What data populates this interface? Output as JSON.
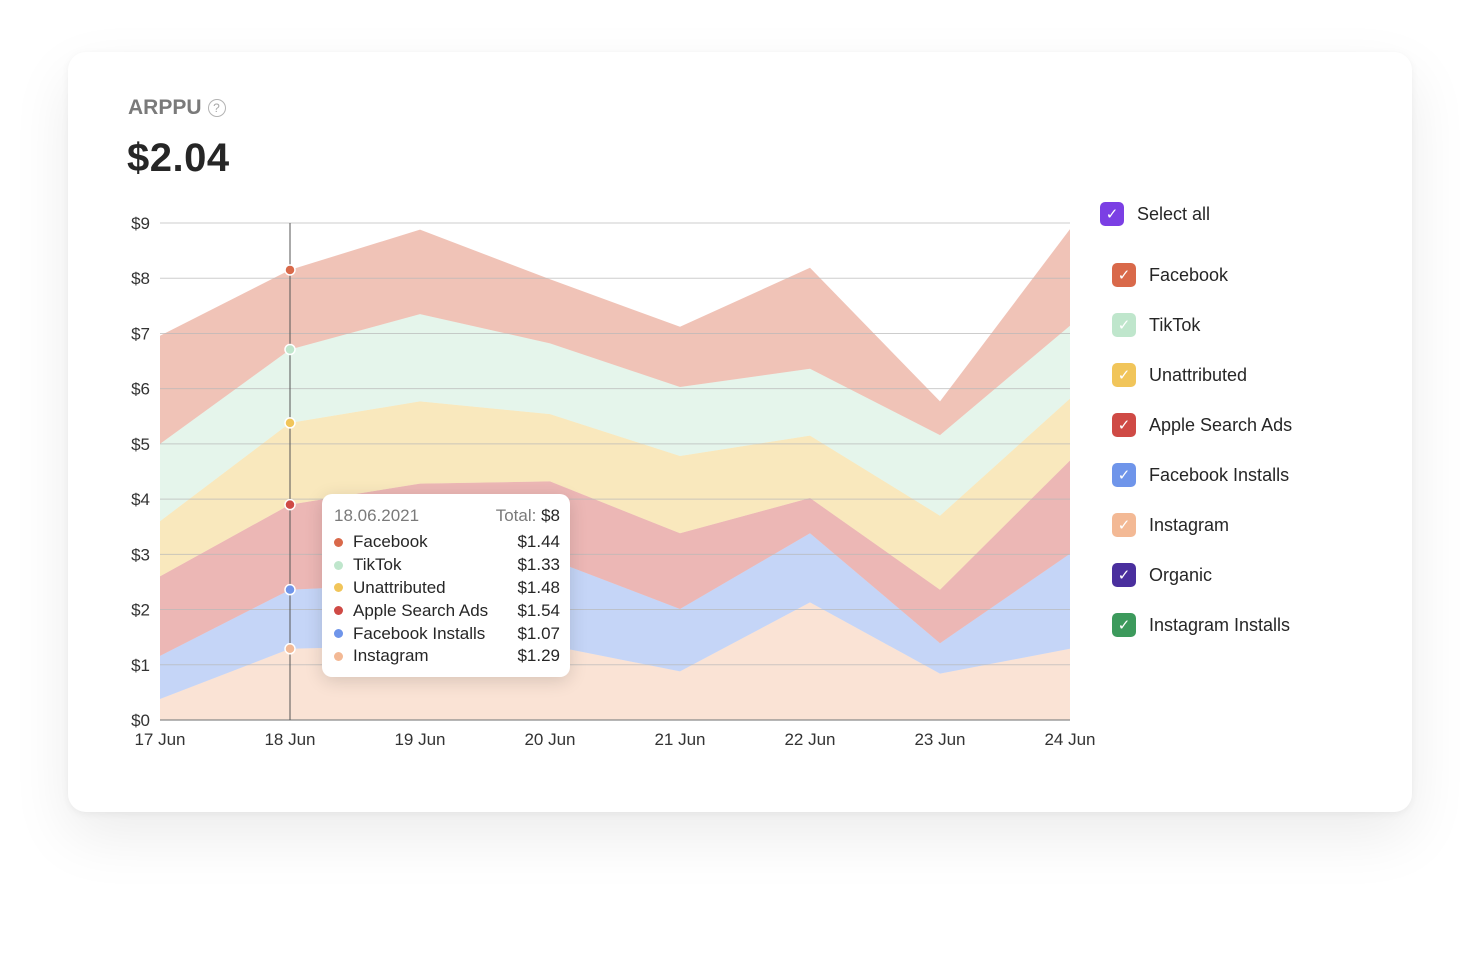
{
  "metric": {
    "title": "ARPPU",
    "help_icon": "question-circle-icon",
    "value": "$2.04"
  },
  "legend": {
    "select_all": {
      "label": "Select all",
      "color": "#7b3fe4",
      "checked": true
    },
    "items": [
      {
        "label": "Facebook",
        "color": "#d9694a",
        "checked": true
      },
      {
        "label": "TikTok",
        "color": "#bfe6cc",
        "checked": true
      },
      {
        "label": "Unattributed",
        "color": "#f1c55a",
        "checked": true
      },
      {
        "label": "Apple Search Ads",
        "color": "#cf4a45",
        "checked": true
      },
      {
        "label": "Facebook Installs",
        "color": "#6f95ea",
        "checked": true
      },
      {
        "label": "Instagram",
        "color": "#f3b995",
        "checked": true
      },
      {
        "label": "Organic",
        "color": "#4a2f9e",
        "checked": true
      },
      {
        "label": "Instagram Installs",
        "color": "#3c9a5c",
        "checked": true
      }
    ]
  },
  "tooltip": {
    "date": "18.06.2021",
    "total_label": "Total:",
    "total_value": "$8",
    "rows": [
      {
        "name": "Facebook",
        "value": "$1.44",
        "color": "#d9694a"
      },
      {
        "name": "TikTok",
        "value": "$1.33",
        "color": "#bfe6cc"
      },
      {
        "name": "Unattributed",
        "value": "$1.48",
        "color": "#f1c55a"
      },
      {
        "name": "Apple Search Ads",
        "value": "$1.54",
        "color": "#cf4a45"
      },
      {
        "name": "Facebook Installs",
        "value": "$1.07",
        "color": "#6f95ea"
      },
      {
        "name": "Instagram",
        "value": "$1.29",
        "color": "#f3b995"
      }
    ]
  },
  "chart_data": {
    "type": "area",
    "stacked": true,
    "categories": [
      "17 Jun",
      "18 Jun",
      "19 Jun",
      "20 Jun",
      "21 Jun",
      "22 Jun",
      "23 Jun",
      "24 Jun"
    ],
    "ylim": [
      0,
      9
    ],
    "yticks": [
      "$0",
      "$1",
      "$2",
      "$3",
      "$4",
      "$5",
      "$6",
      "$7",
      "$8",
      "$9"
    ],
    "grid": true,
    "hover_category": "18 Jun",
    "series": [
      {
        "name": "Instagram",
        "color": "#f3b995",
        "values": [
          0.38,
          1.29,
          1.35,
          1.35,
          0.88,
          2.13,
          0.84,
          1.29
        ]
      },
      {
        "name": "Facebook Installs",
        "color": "#6f95ea",
        "values": [
          0.78,
          1.07,
          1.12,
          1.56,
          1.13,
          1.25,
          0.55,
          1.72
        ]
      },
      {
        "name": "Apple Search Ads",
        "color": "#cf4a45",
        "values": [
          1.44,
          1.54,
          1.81,
          1.41,
          1.37,
          0.64,
          0.97,
          1.69
        ]
      },
      {
        "name": "Unattributed",
        "color": "#f1c55a",
        "values": [
          1.0,
          1.48,
          1.49,
          1.22,
          1.4,
          1.13,
          1.34,
          1.12
        ]
      },
      {
        "name": "TikTok",
        "color": "#bfe6cc",
        "values": [
          1.4,
          1.33,
          1.58,
          1.28,
          1.25,
          1.21,
          1.46,
          1.32
        ]
      },
      {
        "name": "Facebook",
        "color": "#d9694a",
        "values": [
          1.96,
          1.44,
          1.53,
          1.16,
          1.09,
          1.83,
          0.61,
          1.75
        ]
      }
    ]
  }
}
